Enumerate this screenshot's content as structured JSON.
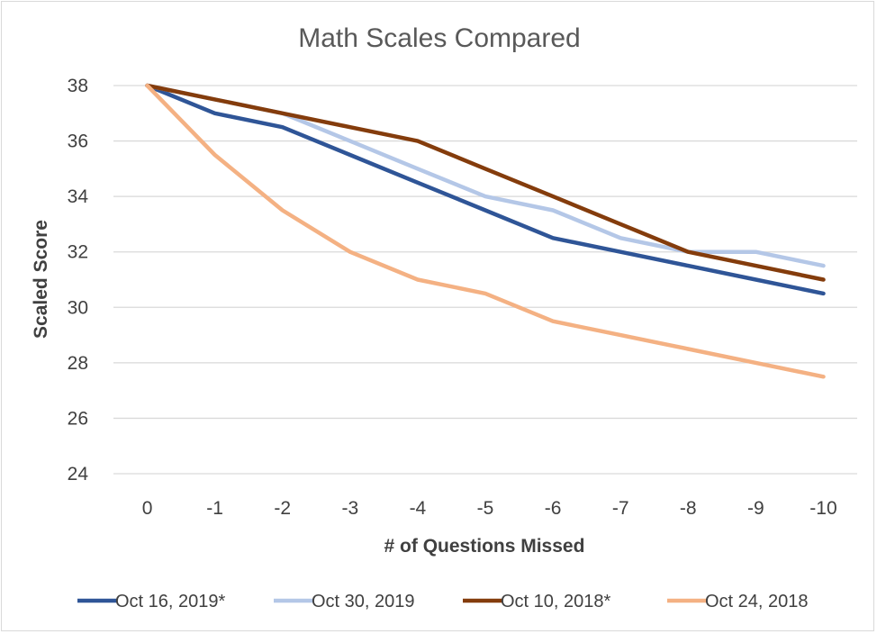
{
  "chart_data": {
    "type": "line",
    "title": "Math Scales Compared",
    "xlabel": "# of Questions Missed",
    "ylabel": "Scaled Score",
    "categories": [
      "0",
      "-1",
      "-2",
      "-3",
      "-4",
      "-5",
      "-6",
      "-7",
      "-8",
      "-9",
      "-10"
    ],
    "ylim": [
      24,
      38
    ],
    "yticks": [
      "24",
      "26",
      "28",
      "30",
      "32",
      "34",
      "36",
      "38"
    ],
    "grid": true,
    "legend_position": "bottom",
    "series": [
      {
        "name": "Oct 16, 2019*",
        "color": "#2f5597",
        "values": [
          38,
          37,
          36.5,
          35.5,
          34.5,
          33.5,
          32.5,
          32,
          31.5,
          31,
          30.5
        ]
      },
      {
        "name": "Oct 30, 2019",
        "color": "#b4c7e7",
        "values": [
          38,
          37.5,
          37,
          36,
          35,
          34,
          33.5,
          32.5,
          32,
          32,
          31.5
        ]
      },
      {
        "name": "Oct 10, 2018*",
        "color": "#843c0c",
        "values": [
          38,
          37.5,
          37,
          36.5,
          36,
          35,
          34,
          33,
          32,
          31.5,
          31
        ]
      },
      {
        "name": "Oct 24, 2018",
        "color": "#f4b183",
        "values": [
          38,
          35.5,
          33.5,
          32,
          31,
          30.5,
          29.5,
          29,
          28.5,
          28,
          27.5
        ]
      }
    ]
  }
}
